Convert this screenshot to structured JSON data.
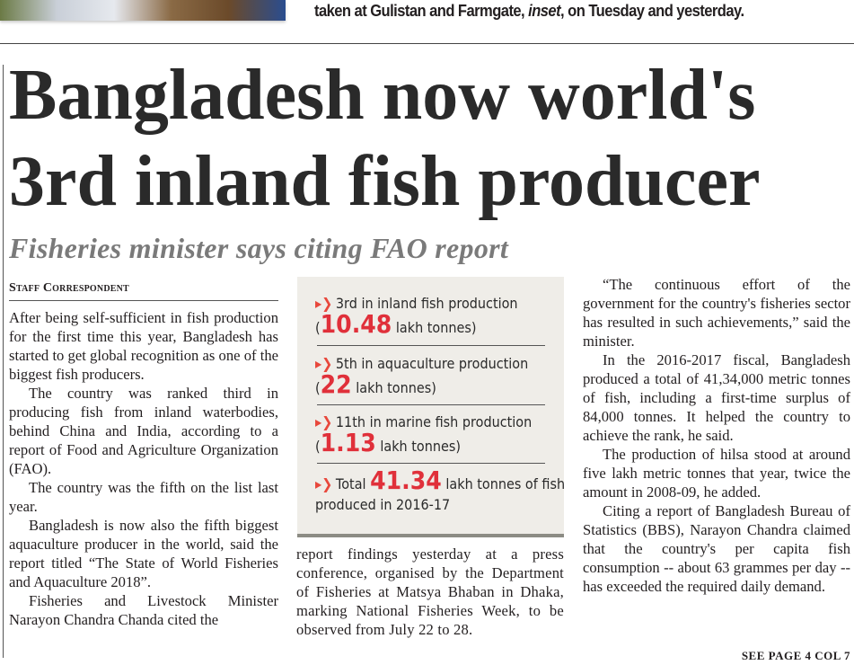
{
  "top": {
    "caption_pre": "taken at Gulistan and Farmgate, ",
    "caption_italic": "inset",
    "caption_post": ", on Tuesday and yesterday."
  },
  "article": {
    "headline_line1": "Bangladesh now world's",
    "headline_line2": "3rd inland fish producer",
    "subheadline": "Fisheries minister says citing FAO report",
    "byline": "Staff Correspondent",
    "col1": [
      "After being self-sufficient in fish production for the first time this year, Bangladesh has started to get global recognition as one of the biggest fish producers.",
      "The country was ranked third in producing fish from inland waterbodies, behind China and India, according to a report of Food and Agriculture Organization (FAO).",
      "The country was the fifth on the list last year.",
      "Bangladesh is now also the fifth biggest aquaculture producer in the world, said the report titled “The State of World Fisheries and Aquaculture 2018”.",
      "Fisheries and Livestock Minister Narayon Chandra Chanda cited the"
    ],
    "col2": "report findings yesterday at a press conference, organised by the Department of Fisheries at Matsya Bhaban in Dhaka, marking National Fisheries Week, to be observed from July 22 to 28.",
    "col3": [
      "“The continuous effort of the government for the country's fisheries sector has resulted in such achievements,” said the minister.",
      "In the 2016-2017 fiscal, Bangladesh produced a total of 41,34,000 metric tonnes of fish, including a first-time surplus of 84,000 tonnes. It helped the country to achieve the rank, he said.",
      "The production of hilsa stood at around five lakh metric tonnes that year, twice the amount in 2008-09, he added.",
      "Citing a report of Bangladesh Bureau of Statistics (BBS), Narayon Chandra claimed that the country's per capita fish consumption -- about 63 grammes per day -- has exceeded the required daily demand."
    ],
    "see_page": "SEE PAGE 4 COL 7"
  },
  "infobox": {
    "accent_color": "#e0303a",
    "items": [
      {
        "line1": "3rd in inland fish production",
        "pre": "(",
        "value": "10.48",
        "post": " lakh tonnes)"
      },
      {
        "line1": "5th in aquaculture production",
        "pre": "(",
        "value": "22",
        "post": " lakh tonnes)"
      },
      {
        "line1": "11th in marine fish production",
        "pre": "(",
        "value": "1.13",
        "post": " lakh tonnes)"
      },
      {
        "line1_pre": "Total ",
        "value": "41.34",
        "line1_post": " lakh tonnes of fish",
        "line2": "produced in 2016-17"
      }
    ]
  }
}
